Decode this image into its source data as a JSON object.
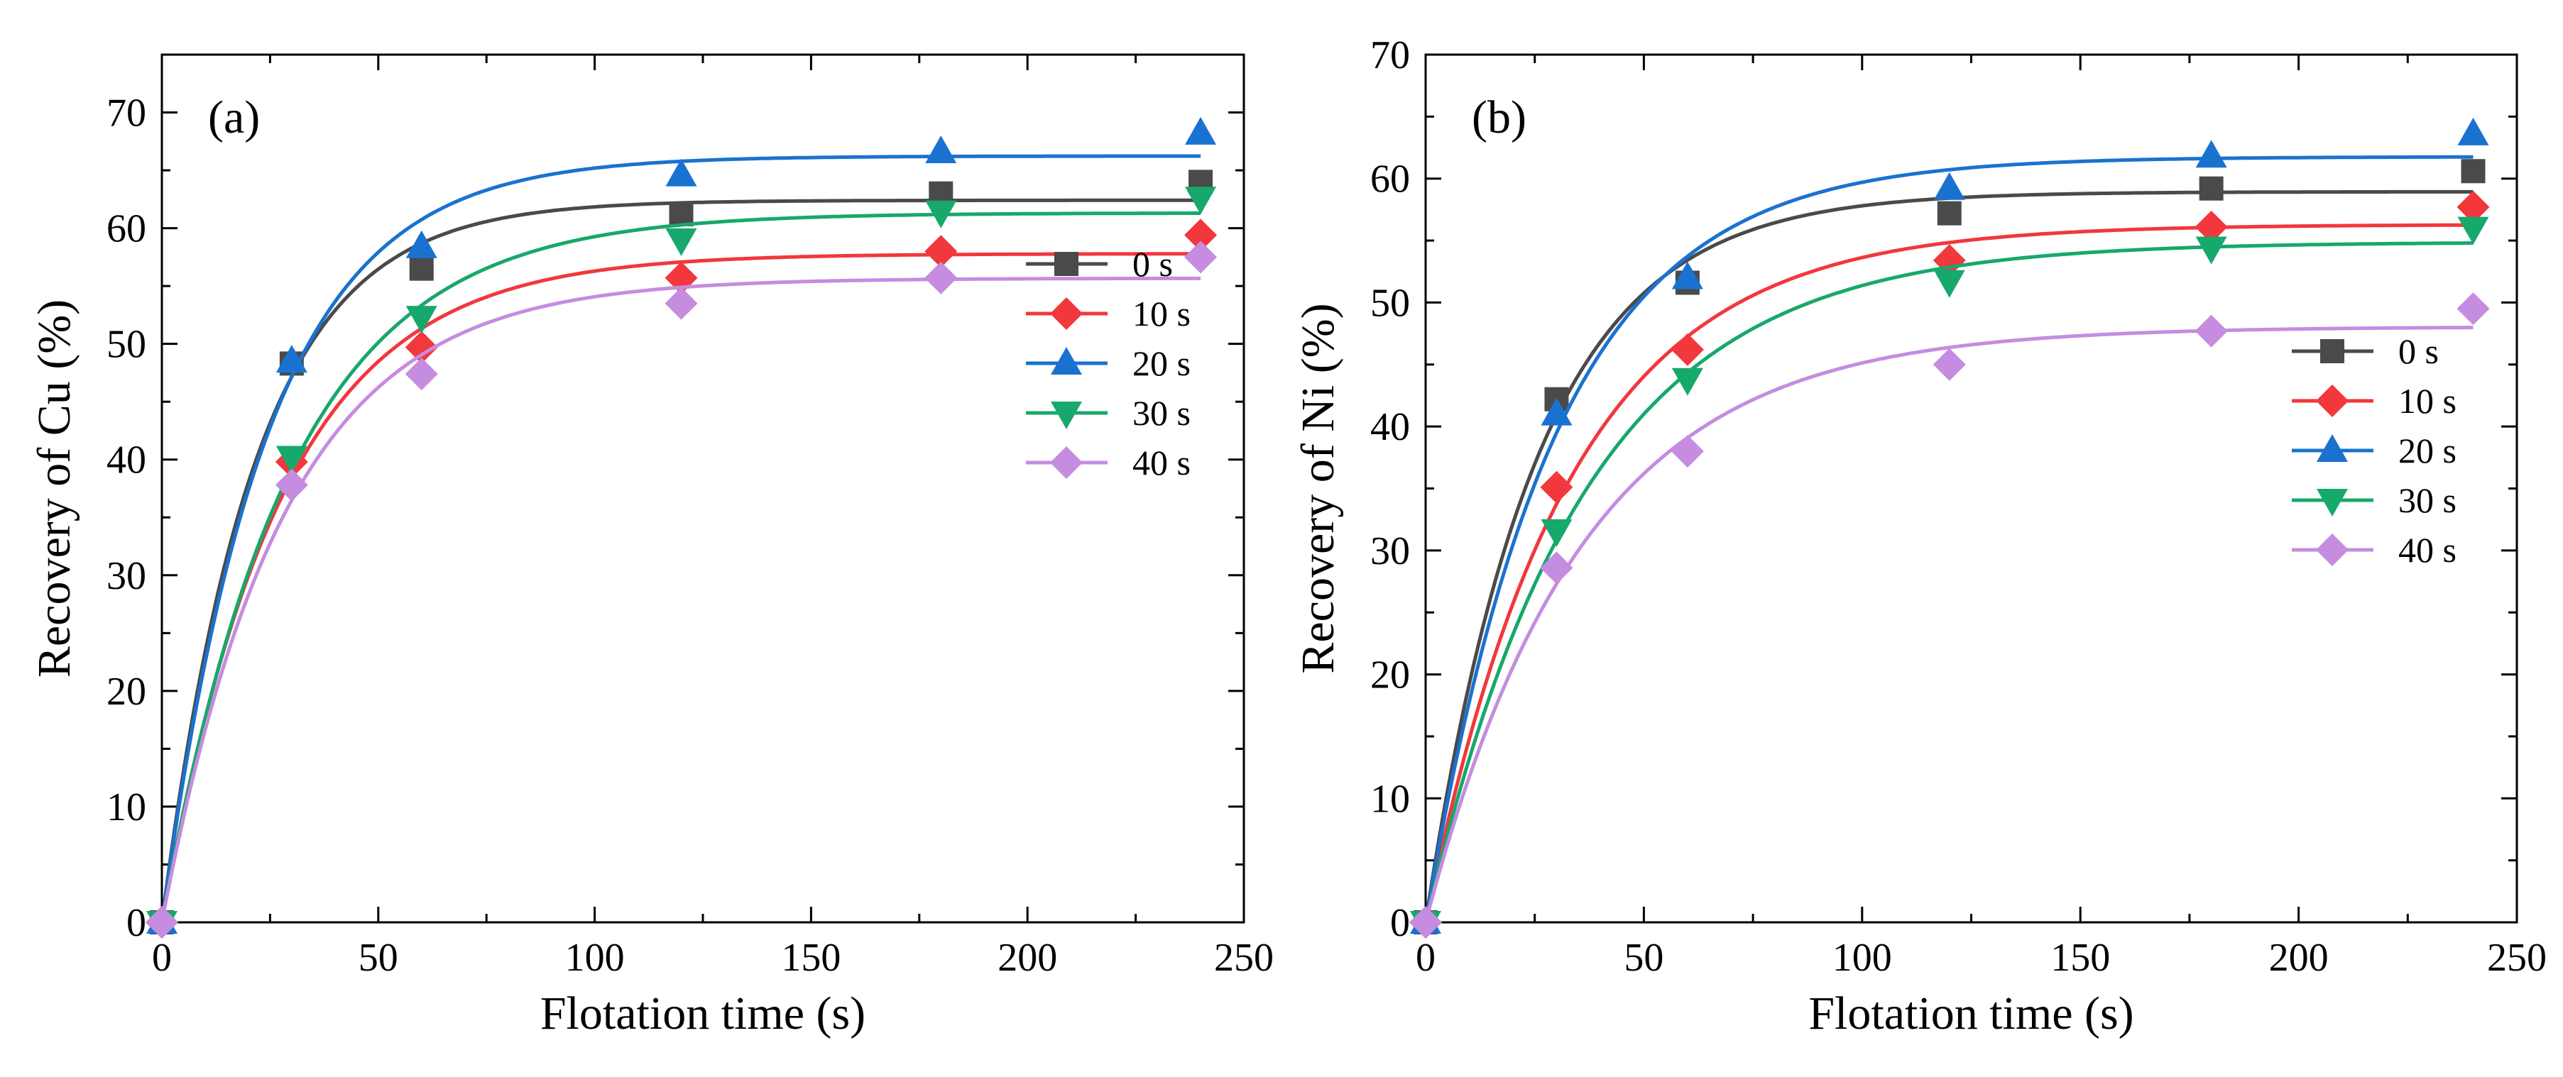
{
  "chart_data": [
    {
      "id": "a",
      "type": "line",
      "panel_label": "(a)",
      "xlabel": "Flotation time (s)",
      "ylabel": "Recovery of Cu (%)",
      "xlim": [
        0,
        250
      ],
      "ylim": [
        0,
        75
      ],
      "xticks": [
        0,
        50,
        100,
        150,
        200,
        250
      ],
      "yticks": [
        0,
        10,
        20,
        30,
        40,
        50,
        60,
        70
      ],
      "legend_position": "right-center",
      "x": [
        0,
        30,
        60,
        120,
        180,
        240
      ],
      "series": [
        {
          "name": "0 s",
          "color": "#4a4a4a",
          "marker": "square",
          "values": [
            0,
            48.3,
            56.5,
            61.2,
            63.0,
            64.0
          ]
        },
        {
          "name": "10 s",
          "color": "#f2373d",
          "marker": "diamond",
          "values": [
            0,
            39.8,
            49.7,
            55.7,
            58.0,
            59.4
          ]
        },
        {
          "name": "20 s",
          "color": "#1a72d0",
          "marker": "triangle-up",
          "values": [
            0,
            48.5,
            58.4,
            64.6,
            66.6,
            68.2
          ]
        },
        {
          "name": "30 s",
          "color": "#17a86b",
          "marker": "triangle-down",
          "values": [
            0,
            40.2,
            52.3,
            59.0,
            61.4,
            62.6
          ]
        },
        {
          "name": "40 s",
          "color": "#c58ce0",
          "marker": "diamond",
          "values": [
            0,
            37.8,
            47.4,
            53.5,
            55.7,
            57.5
          ]
        }
      ]
    },
    {
      "id": "b",
      "type": "line",
      "panel_label": "(b)",
      "xlabel": "Flotation time (s)",
      "ylabel": "Recovery of Ni (%)",
      "xlim": [
        0,
        250
      ],
      "ylim": [
        0,
        70
      ],
      "xticks": [
        0,
        50,
        100,
        150,
        200,
        250
      ],
      "yticks": [
        0,
        10,
        20,
        30,
        40,
        50,
        60,
        70
      ],
      "legend_position": "right-center",
      "x": [
        0,
        30,
        60,
        120,
        180,
        240
      ],
      "series": [
        {
          "name": "0 s",
          "color": "#4a4a4a",
          "marker": "square",
          "values": [
            0,
            42.2,
            51.6,
            57.2,
            59.2,
            60.6
          ]
        },
        {
          "name": "10 s",
          "color": "#f2373d",
          "marker": "diamond",
          "values": [
            0,
            35.1,
            46.2,
            53.4,
            56.1,
            57.7
          ]
        },
        {
          "name": "20 s",
          "color": "#1a72d0",
          "marker": "triangle-up",
          "values": [
            0,
            41.0,
            52.0,
            59.2,
            61.8,
            63.6
          ]
        },
        {
          "name": "30 s",
          "color": "#17a86b",
          "marker": "triangle-down",
          "values": [
            0,
            31.6,
            43.8,
            51.7,
            54.4,
            56.0
          ]
        },
        {
          "name": "40 s",
          "color": "#c58ce0",
          "marker": "diamond",
          "values": [
            0,
            28.6,
            38.0,
            45.0,
            47.7,
            49.5
          ]
        }
      ]
    }
  ]
}
